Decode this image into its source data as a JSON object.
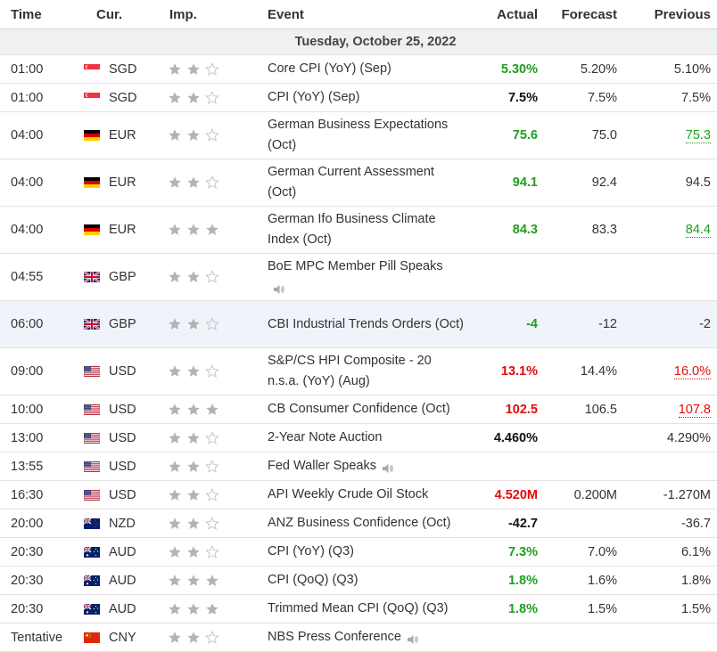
{
  "headers": {
    "time": "Time",
    "cur": "Cur.",
    "imp": "Imp.",
    "event": "Event",
    "actual": "Actual",
    "forecast": "Forecast",
    "previous": "Previous"
  },
  "date_label": "Tuesday, October 25, 2022",
  "colors": {
    "green": "#1f9d1f",
    "red": "#e30b0b",
    "star_filled": "#b3b3b3",
    "star_empty": "#c8c8c8"
  },
  "rows": [
    {
      "time": "01:00",
      "flag": "SG",
      "cur": "SGD",
      "stars": 2,
      "event": "Core CPI (YoY) (Sep)",
      "actual": "5.30%",
      "actual_color": "green",
      "forecast": "5.20%",
      "previous": "5.10%",
      "prev_style": "",
      "two_line": false
    },
    {
      "time": "01:00",
      "flag": "SG",
      "cur": "SGD",
      "stars": 2,
      "event": "CPI (YoY) (Sep)",
      "actual": "7.5%",
      "actual_color": "black",
      "forecast": "7.5%",
      "previous": "7.5%",
      "prev_style": "",
      "two_line": false
    },
    {
      "time": "04:00",
      "flag": "DE",
      "cur": "EUR",
      "stars": 2,
      "event": "German Business Expectations (Oct)",
      "actual": "75.6",
      "actual_color": "green",
      "forecast": "75.0",
      "previous": "75.3",
      "prev_style": "green",
      "two_line": true
    },
    {
      "time": "04:00",
      "flag": "DE",
      "cur": "EUR",
      "stars": 2,
      "event": "German Current Assessment (Oct)",
      "actual": "94.1",
      "actual_color": "green",
      "forecast": "92.4",
      "previous": "94.5",
      "prev_style": "",
      "two_line": true
    },
    {
      "time": "04:00",
      "flag": "DE",
      "cur": "EUR",
      "stars": 3,
      "event": "German Ifo Business Climate Index (Oct)",
      "actual": "84.3",
      "actual_color": "green",
      "forecast": "83.3",
      "previous": "84.4",
      "prev_style": "green",
      "two_line": true
    },
    {
      "time": "04:55",
      "flag": "GB",
      "cur": "GBP",
      "stars": 2,
      "event": "BoE MPC Member Pill Speaks",
      "actual": "",
      "actual_color": "",
      "forecast": "",
      "previous": "",
      "prev_style": "",
      "two_line": true,
      "speaker": true,
      "speaker_newline": true
    },
    {
      "time": "06:00",
      "flag": "GB",
      "cur": "GBP",
      "stars": 2,
      "event": "CBI Industrial Trends Orders (Oct)",
      "actual": "-4",
      "actual_color": "green",
      "forecast": "-12",
      "previous": "-2",
      "prev_style": "",
      "two_line": true,
      "highlight": true,
      "bell": true
    },
    {
      "time": "09:00",
      "flag": "US",
      "cur": "USD",
      "stars": 2,
      "event": "S&P/CS HPI Composite - 20 n.s.a. (YoY) (Aug)",
      "actual": "13.1%",
      "actual_color": "red",
      "forecast": "14.4%",
      "previous": "16.0%",
      "prev_style": "red",
      "two_line": true
    },
    {
      "time": "10:00",
      "flag": "US",
      "cur": "USD",
      "stars": 3,
      "event": "CB Consumer Confidence (Oct)",
      "actual": "102.5",
      "actual_color": "red",
      "forecast": "106.5",
      "previous": "107.8",
      "prev_style": "red",
      "two_line": false
    },
    {
      "time": "13:00",
      "flag": "US",
      "cur": "USD",
      "stars": 2,
      "event": "2-Year Note Auction",
      "actual": "4.460%",
      "actual_color": "black",
      "forecast": "",
      "previous": "4.290%",
      "prev_style": "",
      "two_line": false
    },
    {
      "time": "13:55",
      "flag": "US",
      "cur": "USD",
      "stars": 2,
      "event": "Fed Waller Speaks",
      "actual": "",
      "actual_color": "",
      "forecast": "",
      "previous": "",
      "prev_style": "",
      "two_line": false,
      "speaker": true
    },
    {
      "time": "16:30",
      "flag": "US",
      "cur": "USD",
      "stars": 2,
      "event": "API Weekly Crude Oil Stock",
      "actual": "4.520M",
      "actual_color": "red",
      "forecast": "0.200M",
      "previous": "-1.270M",
      "prev_style": "",
      "two_line": false
    },
    {
      "time": "20:00",
      "flag": "NZ",
      "cur": "NZD",
      "stars": 2,
      "event": "ANZ Business Confidence (Oct)",
      "actual": "-42.7",
      "actual_color": "black",
      "forecast": "",
      "previous": "-36.7",
      "prev_style": "",
      "two_line": false
    },
    {
      "time": "20:30",
      "flag": "AU",
      "cur": "AUD",
      "stars": 2,
      "event": "CPI (YoY) (Q3)",
      "actual": "7.3%",
      "actual_color": "green",
      "forecast": "7.0%",
      "previous": "6.1%",
      "prev_style": "",
      "two_line": false
    },
    {
      "time": "20:30",
      "flag": "AU",
      "cur": "AUD",
      "stars": 3,
      "event": "CPI (QoQ) (Q3)",
      "actual": "1.8%",
      "actual_color": "green",
      "forecast": "1.6%",
      "previous": "1.8%",
      "prev_style": "",
      "two_line": false
    },
    {
      "time": "20:30",
      "flag": "AU",
      "cur": "AUD",
      "stars": 3,
      "event": "Trimmed Mean CPI (QoQ) (Q3)",
      "actual": "1.8%",
      "actual_color": "green",
      "forecast": "1.5%",
      "previous": "1.5%",
      "prev_style": "",
      "two_line": false
    },
    {
      "time": "Tentative",
      "flag": "CN",
      "cur": "CNY",
      "stars": 2,
      "event": "NBS Press Conference",
      "actual": "",
      "actual_color": "",
      "forecast": "",
      "previous": "",
      "prev_style": "",
      "two_line": false,
      "speaker": true
    }
  ]
}
